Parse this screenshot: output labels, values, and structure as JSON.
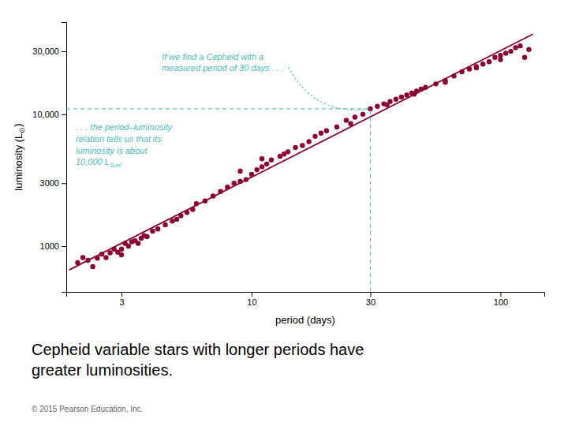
{
  "chart_data": {
    "type": "scatter",
    "title": "Cepheid variable stars with longer periods have\ngreater luminosities.",
    "footnote": "© 2015 Pearson Education, Inc.",
    "xlabel": "period (days)",
    "ylabel": {
      "text": "luminosity (L",
      "subscript": "⊙",
      "suffix": ")"
    },
    "log": true,
    "grid": false,
    "xlim": [
      1.8,
      150
    ],
    "ylim": [
      450,
      50000
    ],
    "xticks": [
      3,
      10,
      30,
      100
    ],
    "yticks": [
      1000,
      3000,
      {
        "value": 10000,
        "label": "10,000"
      },
      {
        "value": 30000,
        "label": "30,000"
      }
    ],
    "series": [
      {
        "type": "scatter",
        "color": "#8B0030",
        "x": [
          2.0,
          2.1,
          2.2,
          2.3,
          2.4,
          2.5,
          2.6,
          2.7,
          2.8,
          2.9,
          3.0,
          3.0,
          3.1,
          3.2,
          3.3,
          3.4,
          3.5,
          3.6,
          3.7,
          3.8,
          4.0,
          4.2,
          4.5,
          4.8,
          5.0,
          5.2,
          5.5,
          5.8,
          6.0,
          6.5,
          7.0,
          7.5,
          8.0,
          8.5,
          9.0,
          9.5,
          10.0,
          10.5,
          11.0,
          11.5,
          12.0,
          13.0,
          14.0,
          15.0,
          16.0,
          17.0,
          18.0,
          19.0,
          20.0,
          22.0,
          24.0,
          26.0,
          28.0,
          30.0,
          32.0,
          34.0,
          36.0,
          38.0,
          40.0,
          42.0,
          44.0,
          46.0,
          48.0,
          50.0,
          55.0,
          60.0,
          65.0,
          70.0,
          75.0,
          80.0,
          85.0,
          90.0,
          95.0,
          100.0,
          105.0,
          110.0,
          115.0,
          120.0,
          125.0,
          130.0,
          9.0,
          11.0,
          13.5,
          25.0,
          35.0,
          45.0,
          60.0,
          80.0,
          100.0
        ],
        "values": [
          750,
          820,
          780,
          700,
          810,
          870,
          820,
          890,
          950,
          900,
          860,
          950,
          1050,
          1000,
          1080,
          1100,
          1050,
          1150,
          1200,
          1180,
          1300,
          1350,
          1450,
          1550,
          1600,
          1700,
          1800,
          1900,
          2100,
          2200,
          2400,
          2600,
          2800,
          3000,
          3100,
          3200,
          3500,
          3800,
          4000,
          4200,
          4500,
          4800,
          5200,
          5600,
          5800,
          6200,
          6800,
          7200,
          7500,
          8000,
          9000,
          9500,
          10000,
          11000,
          11500,
          12000,
          12500,
          13000,
          13500,
          14000,
          14500,
          15000,
          15500,
          16000,
          17000,
          18000,
          19500,
          21000,
          22000,
          23000,
          24000,
          25000,
          27000,
          28000,
          29000,
          30000,
          32000,
          33000,
          27000,
          31000,
          3700,
          4600,
          5000,
          8500,
          11800,
          14200,
          17500,
          22500,
          26000
        ]
      },
      {
        "type": "line",
        "color": "#8B0030",
        "x": [
          1.85,
          135
        ],
        "values": [
          660.6,
          40547
        ]
      },
      {
        "type": "line",
        "color": "#4DB8B8",
        "line_style": "dashed",
        "x": [
          1.8,
          30,
          30
        ],
        "values": [
          11000,
          11000,
          450
        ]
      }
    ],
    "annotations": [
      {
        "text": "If we find a Cepheid with a\nmeasured period of 30 days . . ."
      },
      {
        "text": ". . . the period–luminosity\nrelation tells us that its\nluminosity is about\n10,000 L",
        "subscript": "Sun",
        "suffix": "."
      }
    ]
  }
}
